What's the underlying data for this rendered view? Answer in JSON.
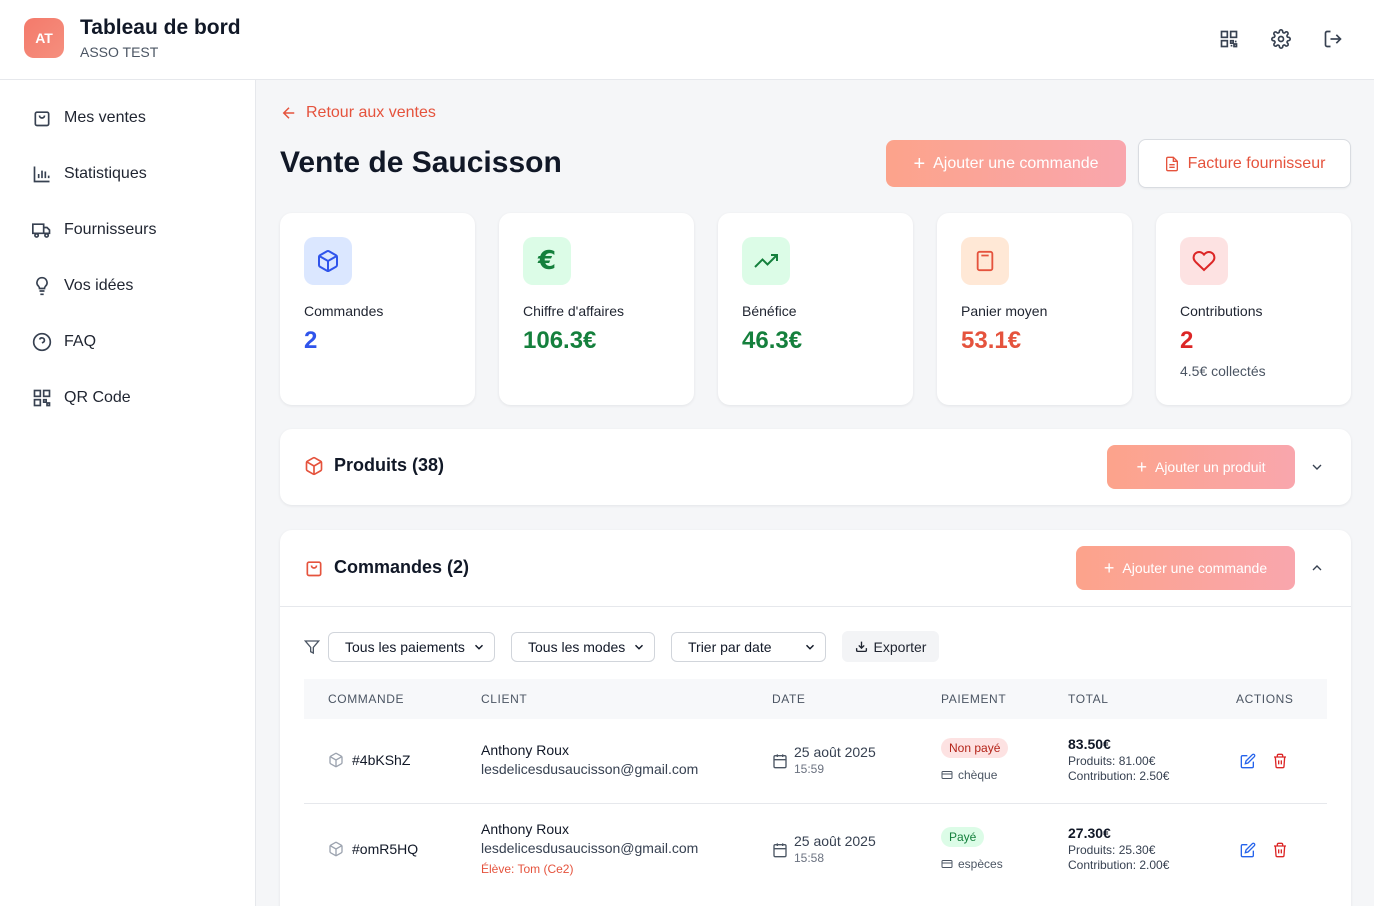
{
  "header": {
    "avatar": "AT",
    "title": "Tableau de bord",
    "subtitle": "ASSO TEST"
  },
  "sidebar": {
    "items": [
      {
        "label": "Mes ventes",
        "icon": "shopping-bag-icon"
      },
      {
        "label": "Statistiques",
        "icon": "bar-chart-icon"
      },
      {
        "label": "Fournisseurs",
        "icon": "truck-icon"
      },
      {
        "label": "Vos idées",
        "icon": "lightbulb-icon"
      },
      {
        "label": "FAQ",
        "icon": "help-circle-icon"
      },
      {
        "label": "QR Code",
        "icon": "qr-code-icon"
      }
    ]
  },
  "main": {
    "back_label": "Retour aux ventes",
    "title": "Vente de Saucisson",
    "add_order_label": "Ajouter une commande",
    "supplier_invoice_label": "Facture fournisseur"
  },
  "stats": [
    {
      "label": "Commandes",
      "value": "2",
      "color": "#2f54eb",
      "icon": "box-icon",
      "icon_bg": "#dbe7ff"
    },
    {
      "label": "Chiffre d'affaires",
      "value": "106.3€",
      "color": "#15803d",
      "icon": "euro-icon",
      "icon_bg": "#dcfce7"
    },
    {
      "label": "Bénéfice",
      "value": "46.3€",
      "color": "#15803d",
      "icon": "trending-up-icon",
      "icon_bg": "#dcfce7"
    },
    {
      "label": "Panier moyen",
      "value": "53.1€",
      "color": "#e5533d",
      "icon": "calculator-icon",
      "icon_bg": "#ffe8d6"
    },
    {
      "label": "Contributions",
      "value": "2",
      "color": "#dc2626",
      "note": "4.5€ collectés",
      "icon": "heart-icon",
      "icon_bg": "#fde2e2"
    }
  ],
  "products_section": {
    "title": "Produits (38)",
    "add_label": "Ajouter un produit"
  },
  "orders_section": {
    "title": "Commandes (2)",
    "add_label": "Ajouter une commande",
    "filters": {
      "payment": "Tous les paiements",
      "mode": "Tous les modes",
      "sort": "Trier par date",
      "export_label": "Exporter"
    },
    "columns": [
      "COMMANDE",
      "CLIENT",
      "DATE",
      "PAIEMENT",
      "TOTAL",
      "ACTIONS"
    ],
    "rows": [
      {
        "id": "#4bKShZ",
        "client_name": "Anthony Roux",
        "client_email": "lesdelicesdusaucisson@gmail.com",
        "client_note": "",
        "date": "25 août 2025",
        "time": "15:59",
        "status": "Non payé",
        "mode": "chèque",
        "total": "83.50€",
        "products": "Produits: 81.00€",
        "contribution": "Contribution: 2.50€"
      },
      {
        "id": "#omR5HQ",
        "client_name": "Anthony Roux",
        "client_email": "lesdelicesdusaucisson@gmail.com",
        "client_note": "Élève: Tom (Ce2)",
        "date": "25 août 2025",
        "time": "15:58",
        "status": "Payé",
        "mode": "espèces",
        "total": "27.30€",
        "products": "Produits: 25.30€",
        "contribution": "Contribution: 2.00€"
      }
    ]
  }
}
